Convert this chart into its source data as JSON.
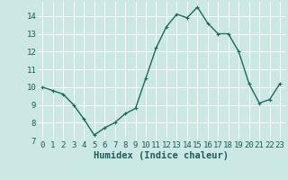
{
  "x": [
    0,
    1,
    2,
    3,
    4,
    5,
    6,
    7,
    8,
    9,
    10,
    11,
    12,
    13,
    14,
    15,
    16,
    17,
    18,
    19,
    20,
    21,
    22,
    23
  ],
  "y": [
    10.0,
    9.8,
    9.6,
    9.0,
    8.2,
    7.3,
    7.7,
    8.0,
    8.5,
    8.8,
    10.5,
    12.2,
    13.4,
    14.1,
    13.9,
    14.5,
    13.6,
    13.0,
    13.0,
    12.0,
    10.2,
    9.1,
    9.3,
    10.2
  ],
  "line_color": "#1a6b5e",
  "marker_color": "#1a6b5e",
  "bg_color": "#cce8e4",
  "grid_color": "#ffffff",
  "xlabel": "Humidex (Indice chaleur)",
  "ylim": [
    7,
    14.8
  ],
  "xlim": [
    -0.5,
    23.5
  ],
  "yticks": [
    7,
    8,
    9,
    10,
    11,
    12,
    13,
    14
  ],
  "xticks": [
    0,
    1,
    2,
    3,
    4,
    5,
    6,
    7,
    8,
    9,
    10,
    11,
    12,
    13,
    14,
    15,
    16,
    17,
    18,
    19,
    20,
    21,
    22,
    23
  ],
  "xlabel_fontsize": 7.5,
  "tick_fontsize": 6.5,
  "marker_size": 2.5,
  "line_width": 1.0
}
